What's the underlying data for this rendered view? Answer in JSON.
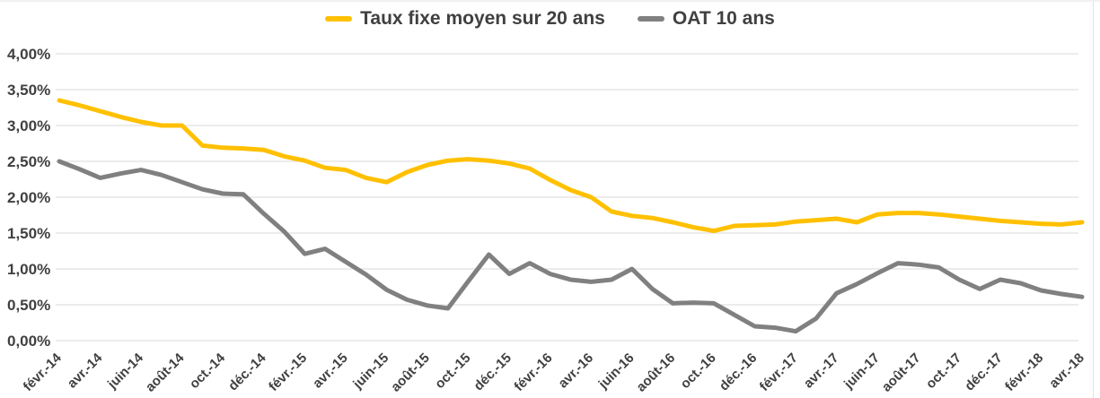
{
  "page": {
    "background": "#ffffff",
    "frame_color": "#e3e3e3"
  },
  "legend": {
    "position": "top-center",
    "items": [
      {
        "label": "Taux fixe moyen sur 20 ans",
        "color": "#FFC000"
      },
      {
        "label": "OAT 10 ans",
        "color": "#808080"
      }
    ]
  },
  "chart_data": {
    "type": "line",
    "title": "",
    "xlabel": "",
    "ylabel": "",
    "grid": true,
    "grid_color": "#d9d9d9",
    "ylim": [
      0,
      4
    ],
    "y_tick_step": 0.5,
    "y_tick_labels": [
      "4,00%",
      "3,50%",
      "3,00%",
      "2,50%",
      "2,00%",
      "1,50%",
      "1,00%",
      "0,50%",
      "0,00%"
    ],
    "x_tick_labels": [
      "févr.-14",
      "avr.-14",
      "juin-14",
      "août-14",
      "oct.-14",
      "déc.-14",
      "févr.-15",
      "avr.-15",
      "juin-15",
      "août-15",
      "oct.-15",
      "déc.-15",
      "févr.-16",
      "avr.-16",
      "juin-16",
      "août-16",
      "oct.-16",
      "déc.-16",
      "févr.-17",
      "avr.-17",
      "juin-17",
      "août-17",
      "oct.-17",
      "déc.-17",
      "févr.-18",
      "avr.-18"
    ],
    "x_points_per_tick": 2,
    "n_points": 51,
    "x_unit": "month",
    "x_range_note": "monthly points from févr.-14 to avr.-18, one label every 2 months",
    "legend_position": "top-center",
    "series": [
      {
        "name": "Taux fixe moyen sur 20 ans",
        "color": "#FFC000",
        "values": [
          3.35,
          3.28,
          3.2,
          3.12,
          3.05,
          3.0,
          3.0,
          2.72,
          2.69,
          2.68,
          2.66,
          2.57,
          2.51,
          2.41,
          2.38,
          2.27,
          2.21,
          2.35,
          2.45,
          2.51,
          2.53,
          2.51,
          2.47,
          2.4,
          2.24,
          2.1,
          2.0,
          1.8,
          1.74,
          1.71,
          1.65,
          1.58,
          1.53,
          1.6,
          1.61,
          1.62,
          1.66,
          1.68,
          1.7,
          1.65,
          1.76,
          1.78,
          1.78,
          1.76,
          1.73,
          1.7,
          1.67,
          1.65,
          1.63,
          1.62,
          1.65
        ]
      },
      {
        "name": "OAT 10 ans",
        "color": "#808080",
        "values": [
          2.5,
          2.39,
          2.27,
          2.33,
          2.38,
          2.31,
          2.21,
          2.11,
          2.05,
          2.04,
          1.77,
          1.52,
          1.21,
          1.28,
          1.1,
          0.92,
          0.71,
          0.57,
          0.49,
          0.45,
          0.83,
          1.2,
          0.93,
          1.08,
          0.93,
          0.85,
          0.82,
          0.85,
          1.0,
          0.72,
          0.52,
          0.53,
          0.52,
          0.36,
          0.2,
          0.18,
          0.13,
          0.31,
          0.66,
          0.79,
          0.94,
          1.08,
          1.06,
          1.02,
          0.85,
          0.72,
          0.85,
          0.8,
          0.7,
          0.65,
          0.61
        ]
      }
    ]
  }
}
